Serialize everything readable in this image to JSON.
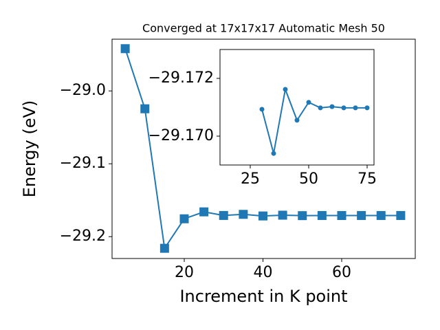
{
  "chart_data": [
    {
      "type": "line",
      "title": "Converged at 17x17x17 Automatic Mesh 50",
      "xlabel": "Increment in K point",
      "ylabel": "Energy (eV)",
      "x": [
        5,
        10,
        15,
        20,
        25,
        30,
        35,
        40,
        45,
        50,
        55,
        60,
        65,
        70,
        75
      ],
      "series": [
        {
          "color": "#1f77b4",
          "marker": "square",
          "values": [
            -28.942,
            -29.0245,
            -29.216,
            -29.1755,
            -29.166,
            -29.17093,
            -29.1694,
            -29.17162,
            -29.17055,
            -29.17117,
            -29.17098,
            -29.17102,
            -29.17098,
            -29.17098,
            -29.17098
          ]
        }
      ],
      "xlim": [
        1.66,
        78.69
      ],
      "ylim": [
        -29.23,
        -28.929
      ],
      "xticks": [
        20,
        40,
        60
      ],
      "yticks": [
        {
          "value": -29.2,
          "label": "−29.2"
        },
        {
          "value": -29.1,
          "label": "−29.1"
        },
        {
          "value": -29.0,
          "label": "−29.0"
        }
      ]
    },
    {
      "type": "line",
      "x": [
        30,
        35,
        40,
        45,
        50,
        55,
        60,
        65,
        70,
        75
      ],
      "series": [
        {
          "color": "#1f77b4",
          "marker": "circle",
          "values": [
            -29.17093,
            -29.1694,
            -29.17162,
            -29.17055,
            -29.17117,
            -29.17098,
            -29.17102,
            -29.17098,
            -29.17098,
            -29.17098
          ]
        }
      ],
      "xlim": [
        12.06,
        77.94
      ],
      "ylim": [
        -29.169,
        -29.173
      ],
      "xticks": [
        25,
        50,
        75
      ],
      "yticks": [
        {
          "value": -29.17,
          "label": "−29.170"
        },
        {
          "value": -29.172,
          "label": "−29.172"
        }
      ]
    }
  ]
}
